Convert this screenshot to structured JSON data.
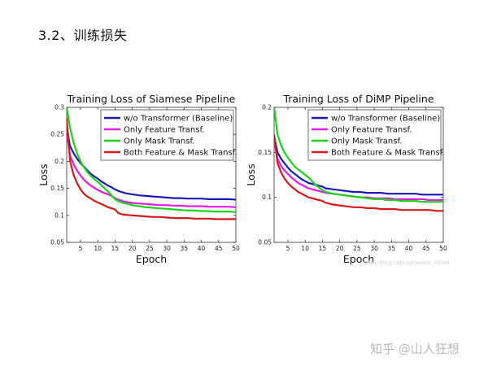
{
  "heading": "3.2、训练损失",
  "watermark": "知乎 @山人狂想",
  "faint_url": "https://blog.csdn.net/weixin_43568",
  "chart_data": [
    {
      "type": "line",
      "title": "Training Loss of Siamese Pipeline",
      "xlabel": "Epoch",
      "ylabel": "Loss",
      "xlim": [
        1,
        50
      ],
      "ylim": [
        0.05,
        0.3
      ],
      "xticks": [
        5,
        10,
        15,
        20,
        25,
        30,
        35,
        40,
        45,
        50
      ],
      "yticks": [
        0.05,
        0.1,
        0.15,
        0.2,
        0.25,
        0.3
      ],
      "legend_position": "top-right",
      "series": [
        {
          "name": "w/o Transformer (Baseline)",
          "color": "#1a1ab8",
          "x": [
            1,
            2,
            3,
            4,
            5,
            6,
            7,
            8,
            9,
            10,
            11,
            12,
            13,
            14,
            15,
            16,
            17,
            18,
            20,
            22,
            24,
            26,
            28,
            30,
            32,
            34,
            36,
            38,
            40,
            42,
            44,
            46,
            48,
            50
          ],
          "values": [
            0.262,
            0.228,
            0.215,
            0.205,
            0.197,
            0.19,
            0.183,
            0.177,
            0.172,
            0.168,
            0.163,
            0.159,
            0.155,
            0.152,
            0.148,
            0.145,
            0.143,
            0.141,
            0.139,
            0.137,
            0.136,
            0.135,
            0.134,
            0.133,
            0.132,
            0.132,
            0.131,
            0.131,
            0.131,
            0.13,
            0.13,
            0.13,
            0.13,
            0.129
          ]
        },
        {
          "name": "Only Feature Transf.",
          "color": "#e619e6",
          "x": [
            1,
            2,
            3,
            4,
            5,
            6,
            7,
            8,
            9,
            10,
            11,
            12,
            13,
            14,
            15,
            16,
            17,
            18,
            20,
            22,
            24,
            26,
            28,
            30,
            32,
            34,
            36,
            38,
            40,
            42,
            44,
            46,
            48,
            50
          ],
          "values": [
            0.255,
            0.21,
            0.195,
            0.183,
            0.174,
            0.166,
            0.16,
            0.155,
            0.151,
            0.147,
            0.144,
            0.141,
            0.139,
            0.136,
            0.132,
            0.129,
            0.127,
            0.125,
            0.123,
            0.122,
            0.121,
            0.12,
            0.119,
            0.119,
            0.118,
            0.118,
            0.117,
            0.117,
            0.117,
            0.116,
            0.116,
            0.116,
            0.116,
            0.115
          ]
        },
        {
          "name": "Only Mask Transf.",
          "color": "#19d419",
          "x": [
            1,
            2,
            3,
            4,
            5,
            6,
            7,
            8,
            9,
            10,
            11,
            12,
            13,
            14,
            15,
            16,
            17,
            18,
            20,
            22,
            24,
            26,
            28,
            30,
            32,
            34,
            36,
            38,
            40,
            42,
            44,
            46,
            48,
            50
          ],
          "values": [
            0.3,
            0.262,
            0.235,
            0.215,
            0.2,
            0.189,
            0.18,
            0.173,
            0.167,
            0.162,
            0.156,
            0.15,
            0.144,
            0.137,
            0.13,
            0.126,
            0.124,
            0.122,
            0.119,
            0.117,
            0.115,
            0.114,
            0.113,
            0.112,
            0.111,
            0.11,
            0.109,
            0.109,
            0.108,
            0.108,
            0.107,
            0.107,
            0.107,
            0.106
          ]
        },
        {
          "name": "Both Feature & Mask Transf.",
          "color": "#d61919",
          "x": [
            1,
            2,
            3,
            4,
            5,
            6,
            7,
            8,
            9,
            10,
            11,
            12,
            13,
            14,
            15,
            16,
            17,
            18,
            20,
            22,
            24,
            26,
            28,
            30,
            32,
            34,
            36,
            38,
            40,
            42,
            44,
            46,
            48,
            50
          ],
          "values": [
            0.28,
            0.2,
            0.175,
            0.16,
            0.148,
            0.14,
            0.135,
            0.131,
            0.127,
            0.124,
            0.121,
            0.118,
            0.115,
            0.113,
            0.111,
            0.104,
            0.102,
            0.101,
            0.1,
            0.099,
            0.098,
            0.097,
            0.097,
            0.096,
            0.095,
            0.095,
            0.095,
            0.094,
            0.094,
            0.094,
            0.093,
            0.093,
            0.093,
            0.093
          ]
        }
      ]
    },
    {
      "type": "line",
      "title": "Training Loss of DiMP Pipeline",
      "xlabel": "Epoch",
      "ylabel": "Loss",
      "xlim": [
        1,
        50
      ],
      "ylim": [
        0.05,
        0.2
      ],
      "xticks": [
        5,
        10,
        15,
        20,
        25,
        30,
        35,
        40,
        45,
        50
      ],
      "yticks": [
        0.05,
        0.1,
        0.15,
        0.2
      ],
      "legend_position": "top-right",
      "series": [
        {
          "name": "w/o Transformer (Baseline)",
          "color": "#1a1ab8",
          "x": [
            1,
            2,
            3,
            4,
            5,
            6,
            7,
            8,
            9,
            10,
            11,
            12,
            13,
            14,
            15,
            16,
            18,
            20,
            22,
            24,
            26,
            28,
            30,
            32,
            34,
            36,
            38,
            40,
            42,
            44,
            46,
            48,
            50
          ],
          "values": [
            0.168,
            0.15,
            0.143,
            0.138,
            0.133,
            0.129,
            0.126,
            0.123,
            0.12,
            0.118,
            0.116,
            0.115,
            0.114,
            0.113,
            0.112,
            0.11,
            0.109,
            0.108,
            0.107,
            0.106,
            0.106,
            0.105,
            0.105,
            0.105,
            0.104,
            0.104,
            0.104,
            0.104,
            0.104,
            0.103,
            0.103,
            0.103,
            0.103
          ]
        },
        {
          "name": "Only Feature Transf.",
          "color": "#e619e6",
          "x": [
            1,
            2,
            3,
            4,
            5,
            6,
            7,
            8,
            9,
            10,
            11,
            12,
            13,
            14,
            15,
            16,
            18,
            20,
            22,
            24,
            26,
            28,
            30,
            32,
            34,
            36,
            38,
            40,
            42,
            44,
            46,
            48,
            50
          ],
          "values": [
            0.165,
            0.143,
            0.135,
            0.13,
            0.126,
            0.122,
            0.119,
            0.116,
            0.114,
            0.112,
            0.11,
            0.109,
            0.108,
            0.107,
            0.106,
            0.105,
            0.104,
            0.103,
            0.102,
            0.101,
            0.1,
            0.1,
            0.099,
            0.099,
            0.099,
            0.098,
            0.098,
            0.098,
            0.098,
            0.098,
            0.097,
            0.097,
            0.097
          ]
        },
        {
          "name": "Only Mask Transf.",
          "color": "#19d419",
          "x": [
            1,
            2,
            3,
            4,
            5,
            6,
            7,
            8,
            9,
            10,
            11,
            12,
            13,
            14,
            15,
            16,
            18,
            20,
            22,
            24,
            26,
            28,
            30,
            32,
            34,
            36,
            38,
            40,
            42,
            44,
            46,
            48,
            50
          ],
          "values": [
            0.2,
            0.17,
            0.158,
            0.15,
            0.144,
            0.139,
            0.134,
            0.131,
            0.128,
            0.125,
            0.122,
            0.118,
            0.114,
            0.111,
            0.108,
            0.106,
            0.104,
            0.103,
            0.102,
            0.101,
            0.1,
            0.099,
            0.098,
            0.098,
            0.097,
            0.097,
            0.096,
            0.096,
            0.096,
            0.095,
            0.095,
            0.095,
            0.095
          ]
        },
        {
          "name": "Both Feature & Mask Transf.",
          "color": "#d61919",
          "x": [
            1,
            2,
            3,
            4,
            5,
            6,
            7,
            8,
            9,
            10,
            11,
            12,
            13,
            14,
            15,
            16,
            18,
            20,
            22,
            24,
            26,
            28,
            30,
            32,
            34,
            36,
            38,
            40,
            42,
            44,
            46,
            48,
            50
          ],
          "values": [
            0.17,
            0.138,
            0.128,
            0.121,
            0.116,
            0.112,
            0.109,
            0.106,
            0.104,
            0.102,
            0.1,
            0.099,
            0.098,
            0.097,
            0.096,
            0.094,
            0.092,
            0.091,
            0.09,
            0.089,
            0.089,
            0.088,
            0.088,
            0.087,
            0.087,
            0.087,
            0.086,
            0.086,
            0.086,
            0.086,
            0.086,
            0.085,
            0.085
          ]
        }
      ]
    }
  ]
}
